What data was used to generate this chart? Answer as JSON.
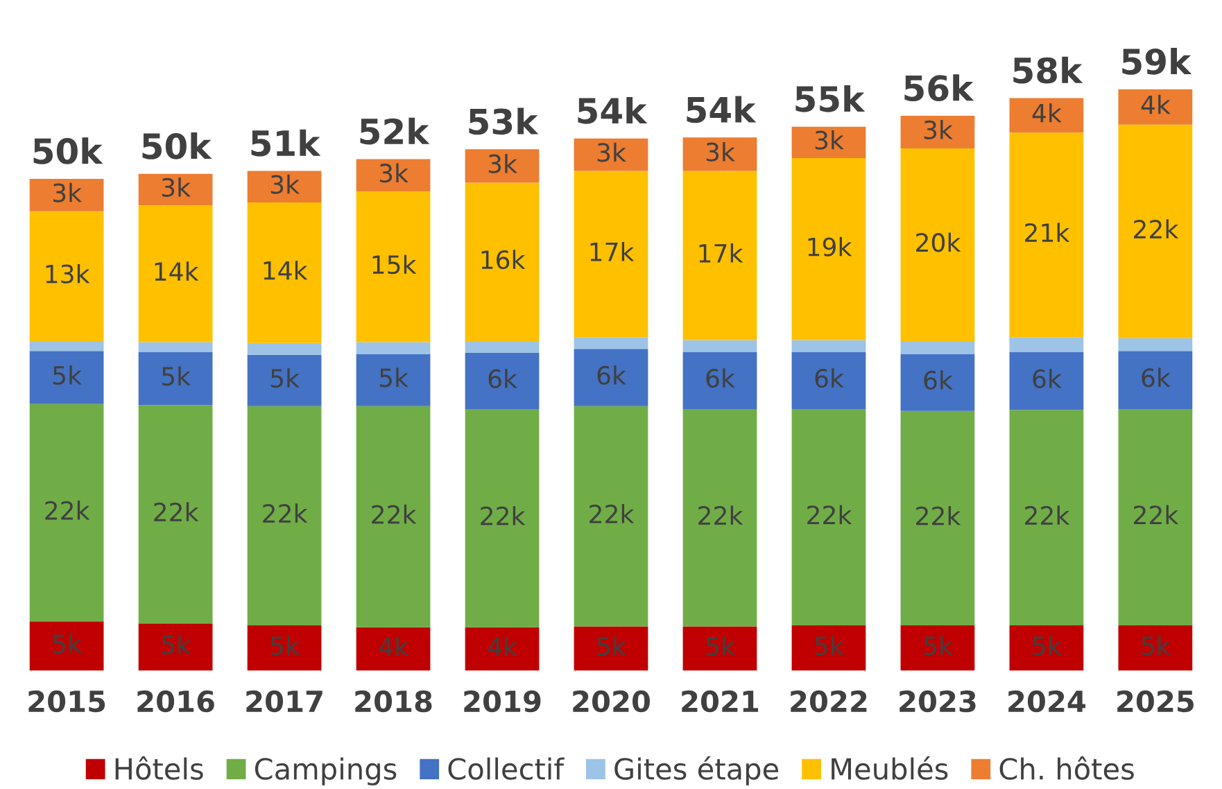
{
  "chart_data": {
    "type": "bar",
    "stacked": true,
    "legend": "bottom",
    "grid": false,
    "categories": [
      "2015",
      "2016",
      "2017",
      "2018",
      "2019",
      "2020",
      "2021",
      "2022",
      "2023",
      "2024",
      "2025"
    ],
    "series": [
      {
        "name": "Hôtels",
        "color": "#c00000",
        "values": [
          5.0,
          4.8,
          4.6,
          4.4,
          4.4,
          4.5,
          4.5,
          4.6,
          4.6,
          4.6,
          4.6
        ],
        "value_labels": [
          "5k",
          "5k",
          "5k",
          "4k",
          "4k",
          "5k",
          "5k",
          "5k",
          "5k",
          "5k",
          "5k"
        ]
      },
      {
        "name": "Campings",
        "color": "#70ad47",
        "values": [
          22.1,
          22.2,
          22.3,
          22.5,
          22.2,
          22.4,
          22.1,
          22.0,
          21.8,
          21.9,
          22.0
        ],
        "value_labels": [
          "22k",
          "22k",
          "22k",
          "22k",
          "22k",
          "22k",
          "22k",
          "22k",
          "22k",
          "22k",
          "22k"
        ]
      },
      {
        "name": "Collectif",
        "color": "#4472c4",
        "values": [
          5.4,
          5.4,
          5.2,
          5.3,
          5.7,
          5.8,
          5.8,
          5.8,
          5.8,
          5.9,
          5.9
        ],
        "value_labels": [
          "5k",
          "5k",
          "5k",
          "5k",
          "6k",
          "6k",
          "6k",
          "6k",
          "6k",
          "6k",
          "6k"
        ]
      },
      {
        "name": "Gites étape",
        "color": "#9dc3e6",
        "values": [
          1.0,
          1.0,
          1.2,
          1.2,
          1.2,
          1.2,
          1.2,
          1.2,
          1.3,
          1.5,
          1.3
        ],
        "value_labels": [
          null,
          null,
          null,
          null,
          null,
          null,
          null,
          null,
          null,
          null,
          null
        ]
      },
      {
        "name": "Meublés",
        "color": "#ffc000",
        "values": [
          13.2,
          13.9,
          14.3,
          15.3,
          16.1,
          16.9,
          17.2,
          18.5,
          19.6,
          20.8,
          21.7
        ],
        "value_labels": [
          "13k",
          "14k",
          "14k",
          "15k",
          "16k",
          "17k",
          "17k",
          "19k",
          "20k",
          "21k",
          "22k"
        ]
      },
      {
        "name": "Ch. hôtes",
        "color": "#ed7d31",
        "values": [
          3.3,
          3.2,
          3.2,
          3.3,
          3.4,
          3.3,
          3.4,
          3.2,
          3.3,
          3.5,
          3.6
        ],
        "value_labels": [
          "3k",
          "3k",
          "3k",
          "3k",
          "3k",
          "3k",
          "3k",
          "3k",
          "3k",
          "4k",
          "4k"
        ]
      }
    ],
    "totals": [
      "50k",
      "50k",
      "51k",
      "52k",
      "53k",
      "54k",
      "54k",
      "55k",
      "56k",
      "58k",
      "59k"
    ]
  }
}
